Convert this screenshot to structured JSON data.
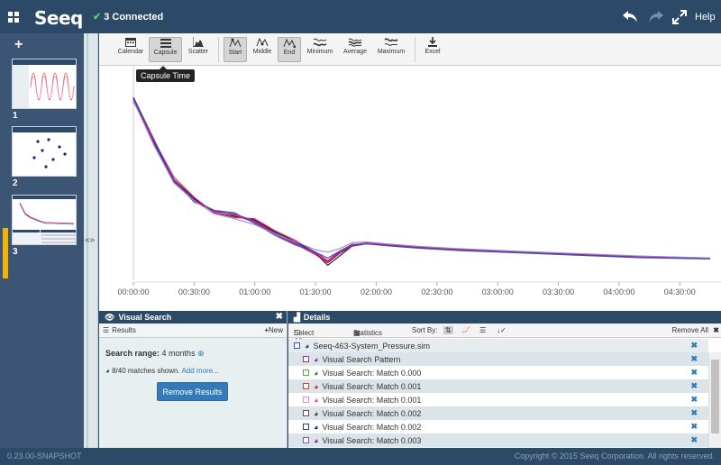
{
  "app": {
    "logo": "Seeq",
    "connection_status": "3 Connected",
    "help_label": "Help",
    "version": "0.23.00-SNAPSHOT",
    "copyright": "Copyright © 2015 Seeq Corporation. All rights reserved."
  },
  "colors": {
    "brand": "#2c4a68",
    "accent": "#337ab7",
    "active_worksheet": "#f4b400",
    "ok": "#4cd964"
  },
  "worksheets": [
    {
      "number": "1",
      "active": false
    },
    {
      "number": "2",
      "active": false
    },
    {
      "number": "3",
      "active": true
    }
  ],
  "toolbar": {
    "items": [
      {
        "label": "Calendar",
        "icon": "calendar-icon",
        "active": false
      },
      {
        "label": "Capsule",
        "icon": "capsule-icon",
        "active": true
      },
      {
        "label": "Scatter",
        "icon": "scatter-icon",
        "active": false
      },
      {
        "label": "Start",
        "icon": "align-start-icon",
        "active": true
      },
      {
        "label": "Middle",
        "icon": "align-middle-icon",
        "active": false
      },
      {
        "label": "End",
        "icon": "align-end-icon",
        "active": true
      },
      {
        "label": "Minimum",
        "icon": "minimum-icon",
        "active": false
      },
      {
        "label": "Average",
        "icon": "average-icon",
        "active": false
      },
      {
        "label": "Maximum",
        "icon": "maximum-icon",
        "active": false
      },
      {
        "label": "Excel",
        "icon": "download-icon",
        "active": false
      }
    ],
    "tooltip": "Capsule Time"
  },
  "chart_data": {
    "type": "line",
    "x_unit": "elapsed time (hh:mm:ss)",
    "xlim": [
      "00:00:00",
      "04:45:00"
    ],
    "x_ticks": [
      "00:00:00",
      "00:30:00",
      "01:00:00",
      "01:30:00",
      "02:00:00",
      "02:30:00",
      "03:00:00",
      "03:30:00",
      "04:00:00",
      "04:30:00"
    ],
    "grid": false,
    "series": [
      {
        "color": "#1a1a1a",
        "x_min": [
          0,
          10,
          20,
          30,
          40,
          50,
          60,
          70,
          80,
          90,
          96,
          102,
          108,
          115,
          125,
          140,
          160,
          190,
          220,
          250,
          285
        ],
        "y": [
          94,
          76,
          60,
          52,
          46,
          44.5,
          43,
          38,
          34,
          29,
          24,
          28,
          32,
          33,
          32.5,
          31.5,
          30.5,
          29.5,
          28.5,
          27.5,
          26.8
        ]
      },
      {
        "color": "#c2185b",
        "x_min": [
          0,
          10,
          20,
          30,
          40,
          50,
          60,
          70,
          80,
          90,
          96,
          102,
          108,
          115,
          125,
          140,
          160,
          190,
          220,
          250,
          285
        ],
        "y": [
          93,
          75,
          60,
          51,
          47,
          45,
          42,
          37,
          33,
          28.5,
          25,
          29,
          32,
          33.2,
          32.6,
          31.6,
          30.6,
          29.6,
          28.6,
          27.6,
          26.9
        ]
      },
      {
        "color": "#7b1fa2",
        "x_min": [
          0,
          10,
          20,
          30,
          40,
          50,
          60,
          70,
          80,
          90,
          96,
          102,
          108,
          115,
          125,
          140,
          160,
          190,
          220,
          250,
          285
        ],
        "y": [
          93.5,
          75.5,
          59,
          51.5,
          46.5,
          45.5,
          42.5,
          37.5,
          33.5,
          29,
          25.5,
          29.5,
          32.2,
          33.1,
          32.4,
          31.4,
          30.4,
          29.4,
          28.4,
          27.4,
          26.7
        ]
      },
      {
        "color": "#e91e63",
        "x_min": [
          0,
          10,
          20,
          30,
          40,
          50,
          60,
          70,
          80,
          90,
          96,
          102,
          108,
          115,
          125,
          140,
          160,
          190,
          220,
          250,
          285
        ],
        "y": [
          92.5,
          76.5,
          61,
          52.5,
          46,
          44,
          43.5,
          38.5,
          34.5,
          29.5,
          26,
          30,
          32.5,
          33.4,
          32.8,
          31.8,
          30.8,
          29.8,
          28.8,
          27.8,
          27.0
        ]
      },
      {
        "color": "#3f51b5",
        "x_min": [
          0,
          10,
          20,
          30,
          40,
          50,
          60,
          70,
          80,
          90,
          96,
          102,
          108,
          115,
          125,
          140,
          160,
          190,
          220,
          250,
          285
        ],
        "y": [
          94.5,
          77,
          59.5,
          50.5,
          47,
          46,
          41.5,
          36.5,
          32.5,
          29.5,
          27,
          30,
          32.8,
          33.0,
          32.2,
          31.2,
          30.2,
          29.2,
          28.2,
          27.2,
          26.6
        ]
      },
      {
        "color": "#8e8ed6",
        "x_min": [
          0,
          10,
          20,
          30,
          40,
          50,
          60,
          70,
          80,
          90,
          96,
          102,
          108,
          115,
          125,
          140,
          160,
          190,
          220,
          250,
          285
        ],
        "y": [
          93,
          74.5,
          58.5,
          51,
          45.5,
          43.5,
          41,
          37,
          34,
          30.5,
          29.5,
          31,
          33.5,
          33.8,
          33.0,
          32.0,
          31.0,
          29.9,
          28.9,
          27.9,
          27.1
        ]
      }
    ]
  },
  "visual_search": {
    "title": "Visual Search",
    "results_label": "Results",
    "new_label": "New",
    "range_label": "Search range:",
    "range_value": "4 months",
    "matches_text": "8/40 matches shown.",
    "add_more": "Add more...",
    "remove_button": "Remove Results"
  },
  "details": {
    "title": "Details",
    "select_all": "Select All",
    "statistics": "Statistics",
    "sort_by": "Sort By:",
    "remove_all": "Remove All",
    "items": [
      {
        "label": "Seeq-463-System_Pressure.sim",
        "color": "#3f51b5",
        "icon_color": "#2c4a68",
        "indent": false,
        "shaded": false
      },
      {
        "label": "Visual Search Pattern",
        "color": "#9c27b0",
        "icon_color": "#9c27b0",
        "indent": true,
        "shaded": true
      },
      {
        "label": "Visual Search: Match 0.000",
        "color": "#4caf50",
        "icon_color": "#2e7d32",
        "indent": true,
        "shaded": false
      },
      {
        "label": "Visual Search: Match 0.001",
        "color": "#e53935",
        "icon_color": "#c62828",
        "indent": true,
        "shaded": true
      },
      {
        "label": "Visual Search: Match 0.001",
        "color": "#f48fb1",
        "icon_color": "#ec407a",
        "indent": true,
        "shaded": false
      },
      {
        "label": "Visual Search: Match 0.002",
        "color": "#6d4c41",
        "icon_color": "#4e342e",
        "indent": true,
        "shaded": true
      },
      {
        "label": "Visual Search: Match 0.002",
        "color": "#283593",
        "icon_color": "#1a237e",
        "indent": true,
        "shaded": false
      },
      {
        "label": "Visual Search: Match 0.003",
        "color": "#7e57c2",
        "icon_color": "#7b1fa2",
        "indent": true,
        "shaded": true
      }
    ]
  }
}
